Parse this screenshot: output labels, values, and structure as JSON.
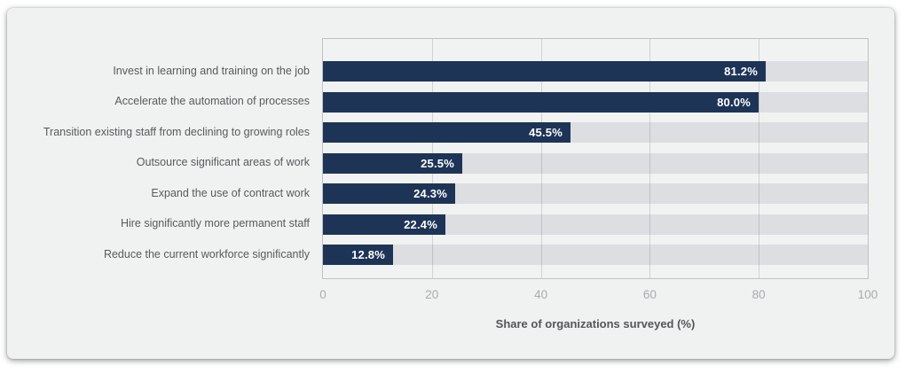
{
  "page": {
    "background": "#ffffff"
  },
  "card": {
    "background": "#f0f1f1"
  },
  "chart_data": {
    "type": "bar",
    "orientation": "horizontal",
    "title": "",
    "xlabel": "Share of organizations surveyed (%)",
    "ylabel": "",
    "categories": [
      "Invest in learning and training on the job",
      "Accelerate the automation of processes",
      "Transition existing staff from declining to growing roles",
      "Outsource significant areas of work",
      "Expand the use of contract work",
      "Hire significantly more permanent staff",
      "Reduce the current workforce significantly"
    ],
    "values": [
      81.2,
      80.0,
      45.5,
      25.5,
      24.3,
      22.4,
      12.8
    ],
    "value_labels": [
      "81.2%",
      "80.0%",
      "45.5%",
      "25.5%",
      "24.3%",
      "22.4%",
      "12.8%"
    ],
    "xlim": [
      0,
      100
    ],
    "xticks": [
      "0",
      "20",
      "40",
      "60",
      "80",
      "100"
    ],
    "grid": true,
    "legend": false,
    "colors": {
      "bar": "#1d3456",
      "track": "#dcdee2",
      "grid": "#c7c8ca",
      "plot_border": "#bfc1c3",
      "value_label": "#ffffff",
      "category_label": "#595a5c",
      "tick_label": "#a9abad",
      "axis_title": "#55565a"
    }
  }
}
